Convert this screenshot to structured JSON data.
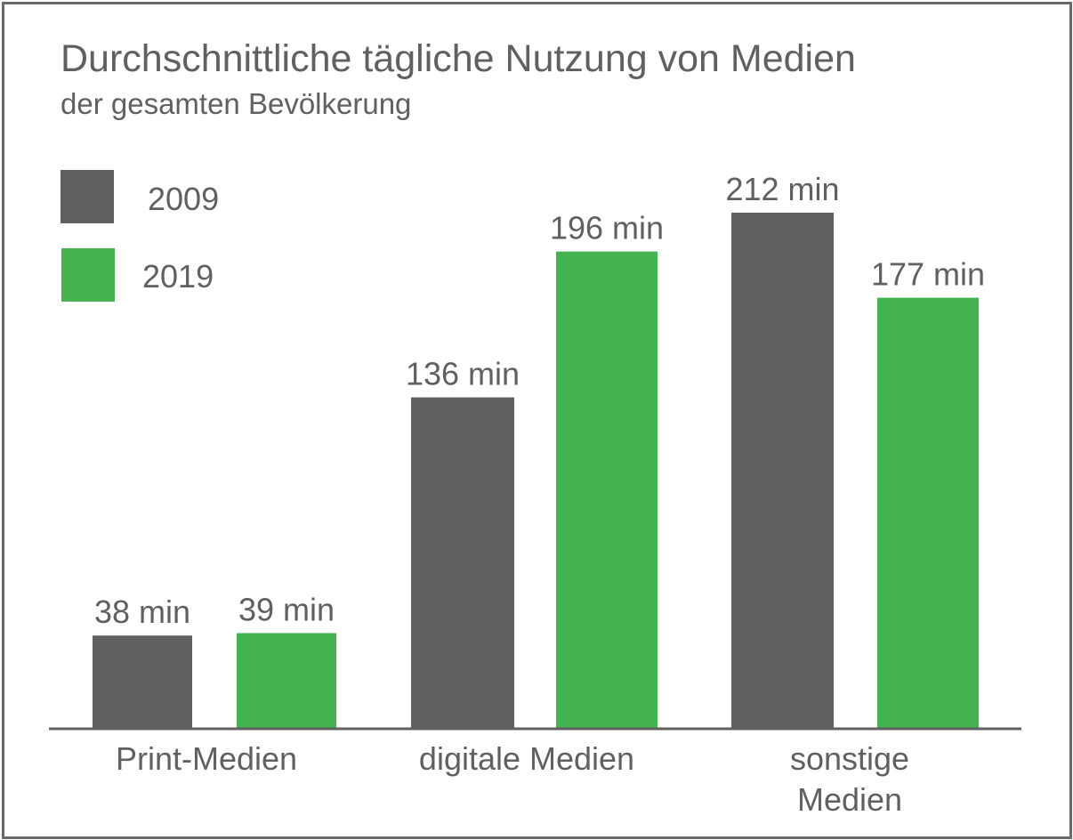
{
  "chart_data": {
    "type": "bar",
    "title": "Durchschnittliche tägliche Nutzung von Medien",
    "subtitle": "der gesamten Bevölkerung",
    "categories": [
      [
        "Print-Medien"
      ],
      [
        "digitale Medien"
      ],
      [
        "sonstige",
        "Medien"
      ]
    ],
    "series": [
      {
        "name": "2009",
        "color": "#606060",
        "values": [
          38,
          136,
          212
        ],
        "labels": [
          "38 min",
          "136 min",
          "212 min"
        ]
      },
      {
        "name": "2019",
        "color": "#45b450",
        "values": [
          39,
          196,
          177
        ],
        "labels": [
          "39 min",
          "196 min",
          "177 min"
        ]
      }
    ],
    "unit": "min",
    "ylim": [
      0,
      212
    ],
    "grid": false,
    "legend_position": "top-left"
  }
}
